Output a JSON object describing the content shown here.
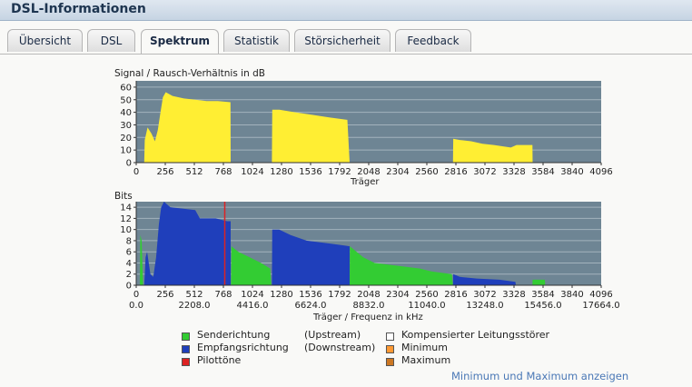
{
  "header": {
    "title": "DSL-Informationen"
  },
  "tabs": [
    {
      "label": "Übersicht",
      "active": false
    },
    {
      "label": "DSL",
      "active": false
    },
    {
      "label": "Spektrum",
      "active": true
    },
    {
      "label": "Statistik",
      "active": false
    },
    {
      "label": "Störsicherheit",
      "active": false
    },
    {
      "label": "Feedback",
      "active": false
    }
  ],
  "colors": {
    "plot_bg": "#6e8594",
    "grid": "#a3b3bd",
    "snr": "#ffee33",
    "upstream": "#33cc33",
    "downstream": "#1f3fbb",
    "pilot": "#dd2222",
    "minimum": "#ff9933",
    "maximum": "#cc7722"
  },
  "chart_data": [
    {
      "type": "area",
      "title": "Signal / Rausch-Verhältnis in dB",
      "xlabel": "Träger",
      "x_ticks": [
        "0",
        "256",
        "512",
        "768",
        "1024",
        "1280",
        "1536",
        "1792",
        "2048",
        "2304",
        "2560",
        "2816",
        "3072",
        "3328",
        "3584",
        "3840",
        "4096"
      ],
      "y_ticks": [
        "0",
        "10",
        "20",
        "30",
        "40",
        "50",
        "60"
      ],
      "xlim": [
        0,
        4096
      ],
      "ylim": [
        0,
        65
      ],
      "series": [
        {
          "color": "snr",
          "segments": [
            [
              [
                70,
                0
              ],
              [
                75,
                18
              ],
              [
                100,
                28
              ],
              [
                135,
                23
              ],
              [
                165,
                17
              ],
              [
                190,
                26
              ],
              [
                210,
                38
              ],
              [
                235,
                52
              ],
              [
                260,
                56
              ],
              [
                320,
                53
              ],
              [
                420,
                51
              ],
              [
                520,
                50
              ],
              [
                620,
                49
              ],
              [
                720,
                49
              ],
              [
                830,
                48
              ],
              [
                832,
                0
              ]
            ],
            [
              [
                1195,
                0
              ],
              [
                1198,
                42
              ],
              [
                1260,
                42
              ],
              [
                1400,
                40
              ],
              [
                1550,
                38
              ],
              [
                1700,
                36
              ],
              [
                1860,
                34
              ],
              [
                1880,
                0
              ]
            ],
            [
              [
                2790,
                0
              ],
              [
                2793,
                19
              ],
              [
                2850,
                18
              ],
              [
                2950,
                17
              ],
              [
                3050,
                15
              ],
              [
                3150,
                14
              ],
              [
                3300,
                12
              ],
              [
                3350,
                14
              ],
              [
                3490,
                14
              ],
              [
                3492,
                0
              ]
            ]
          ]
        }
      ]
    },
    {
      "type": "area",
      "title": "Bits",
      "xlabel": "Träger / Frequenz in kHz",
      "x_ticks": [
        "0",
        "256",
        "512",
        "768",
        "1024",
        "1280",
        "1536",
        "1792",
        "2048",
        "2304",
        "2560",
        "2816",
        "3072",
        "3328",
        "3584",
        "3840",
        "4096"
      ],
      "x_ticks_khz": [
        "0.0",
        "2208.0",
        "4416.0",
        "6624.0",
        "8832.0",
        "11040.0",
        "13248.0",
        "15456.0",
        "17664.0"
      ],
      "y_ticks": [
        "0",
        "2",
        "4",
        "6",
        "8",
        "10",
        "12",
        "14"
      ],
      "xlim": [
        0,
        4096
      ],
      "ylim": [
        0,
        15
      ],
      "series": [
        {
          "name": "Senderichtung",
          "color": "upstream",
          "segments": [
            [
              [
                32,
                0
              ],
              [
                36,
                9
              ],
              [
                48,
                8
              ],
              [
                60,
                0
              ]
            ],
            [
              [
                835,
                0
              ],
              [
                838,
                7
              ],
              [
                900,
                6
              ],
              [
                1000,
                5
              ],
              [
                1100,
                4
              ],
              [
                1180,
                3
              ],
              [
                1190,
                0
              ]
            ],
            [
              [
                1880,
                0
              ],
              [
                1882,
                7
              ],
              [
                2000,
                5
              ],
              [
                2100,
                4
              ],
              [
                2300,
                3.5
              ],
              [
                2500,
                3
              ],
              [
                2600,
                2.5
              ],
              [
                2780,
                2
              ],
              [
                2790,
                0
              ]
            ],
            [
              [
                3490,
                0
              ],
              [
                3492,
                1
              ],
              [
                3600,
                1
              ],
              [
                3602,
                0
              ]
            ]
          ]
        },
        {
          "name": "Empfangsrichtung",
          "color": "downstream",
          "segments": [
            [
              [
                70,
                0
              ],
              [
                82,
                5
              ],
              [
                96,
                6
              ],
              [
                125,
                2
              ],
              [
                150,
                1.5
              ],
              [
                175,
                5
              ],
              [
                200,
                11
              ],
              [
                220,
                14
              ],
              [
                245,
                15
              ],
              [
                300,
                14
              ],
              [
                520,
                13.5
              ],
              [
                560,
                12
              ],
              [
                700,
                12
              ],
              [
                800,
                11.5
              ],
              [
                832,
                11.5
              ],
              [
                832,
                0
              ]
            ],
            [
              [
                1195,
                0
              ],
              [
                1198,
                10
              ],
              [
                1260,
                10
              ],
              [
                1360,
                9
              ],
              [
                1500,
                8
              ],
              [
                1700,
                7.5
              ],
              [
                1880,
                7
              ],
              [
                1880,
                0
              ]
            ],
            [
              [
                2790,
                0
              ],
              [
                2793,
                2
              ],
              [
                2850,
                1.5
              ],
              [
                3000,
                1.2
              ],
              [
                3200,
                1
              ],
              [
                3340,
                0.6
              ],
              [
                3345,
                0
              ]
            ]
          ]
        }
      ],
      "pilot_tones": [
        {
          "name": "Pilottöne",
          "carrier": 780,
          "color": "pilot"
        }
      ]
    }
  ],
  "legend": {
    "up_label": "Senderichtung",
    "up_suffix": "(Upstream)",
    "down_label": "Empfangsrichtung",
    "down_suffix": "(Downstream)",
    "pilot_label": "Pilottöne",
    "comp_label": "Kompensierter Leitungsstörer",
    "min_label": "Minimum",
    "max_label": "Maximum"
  },
  "links": {
    "minmax": "Minimum und Maximum anzeigen"
  }
}
